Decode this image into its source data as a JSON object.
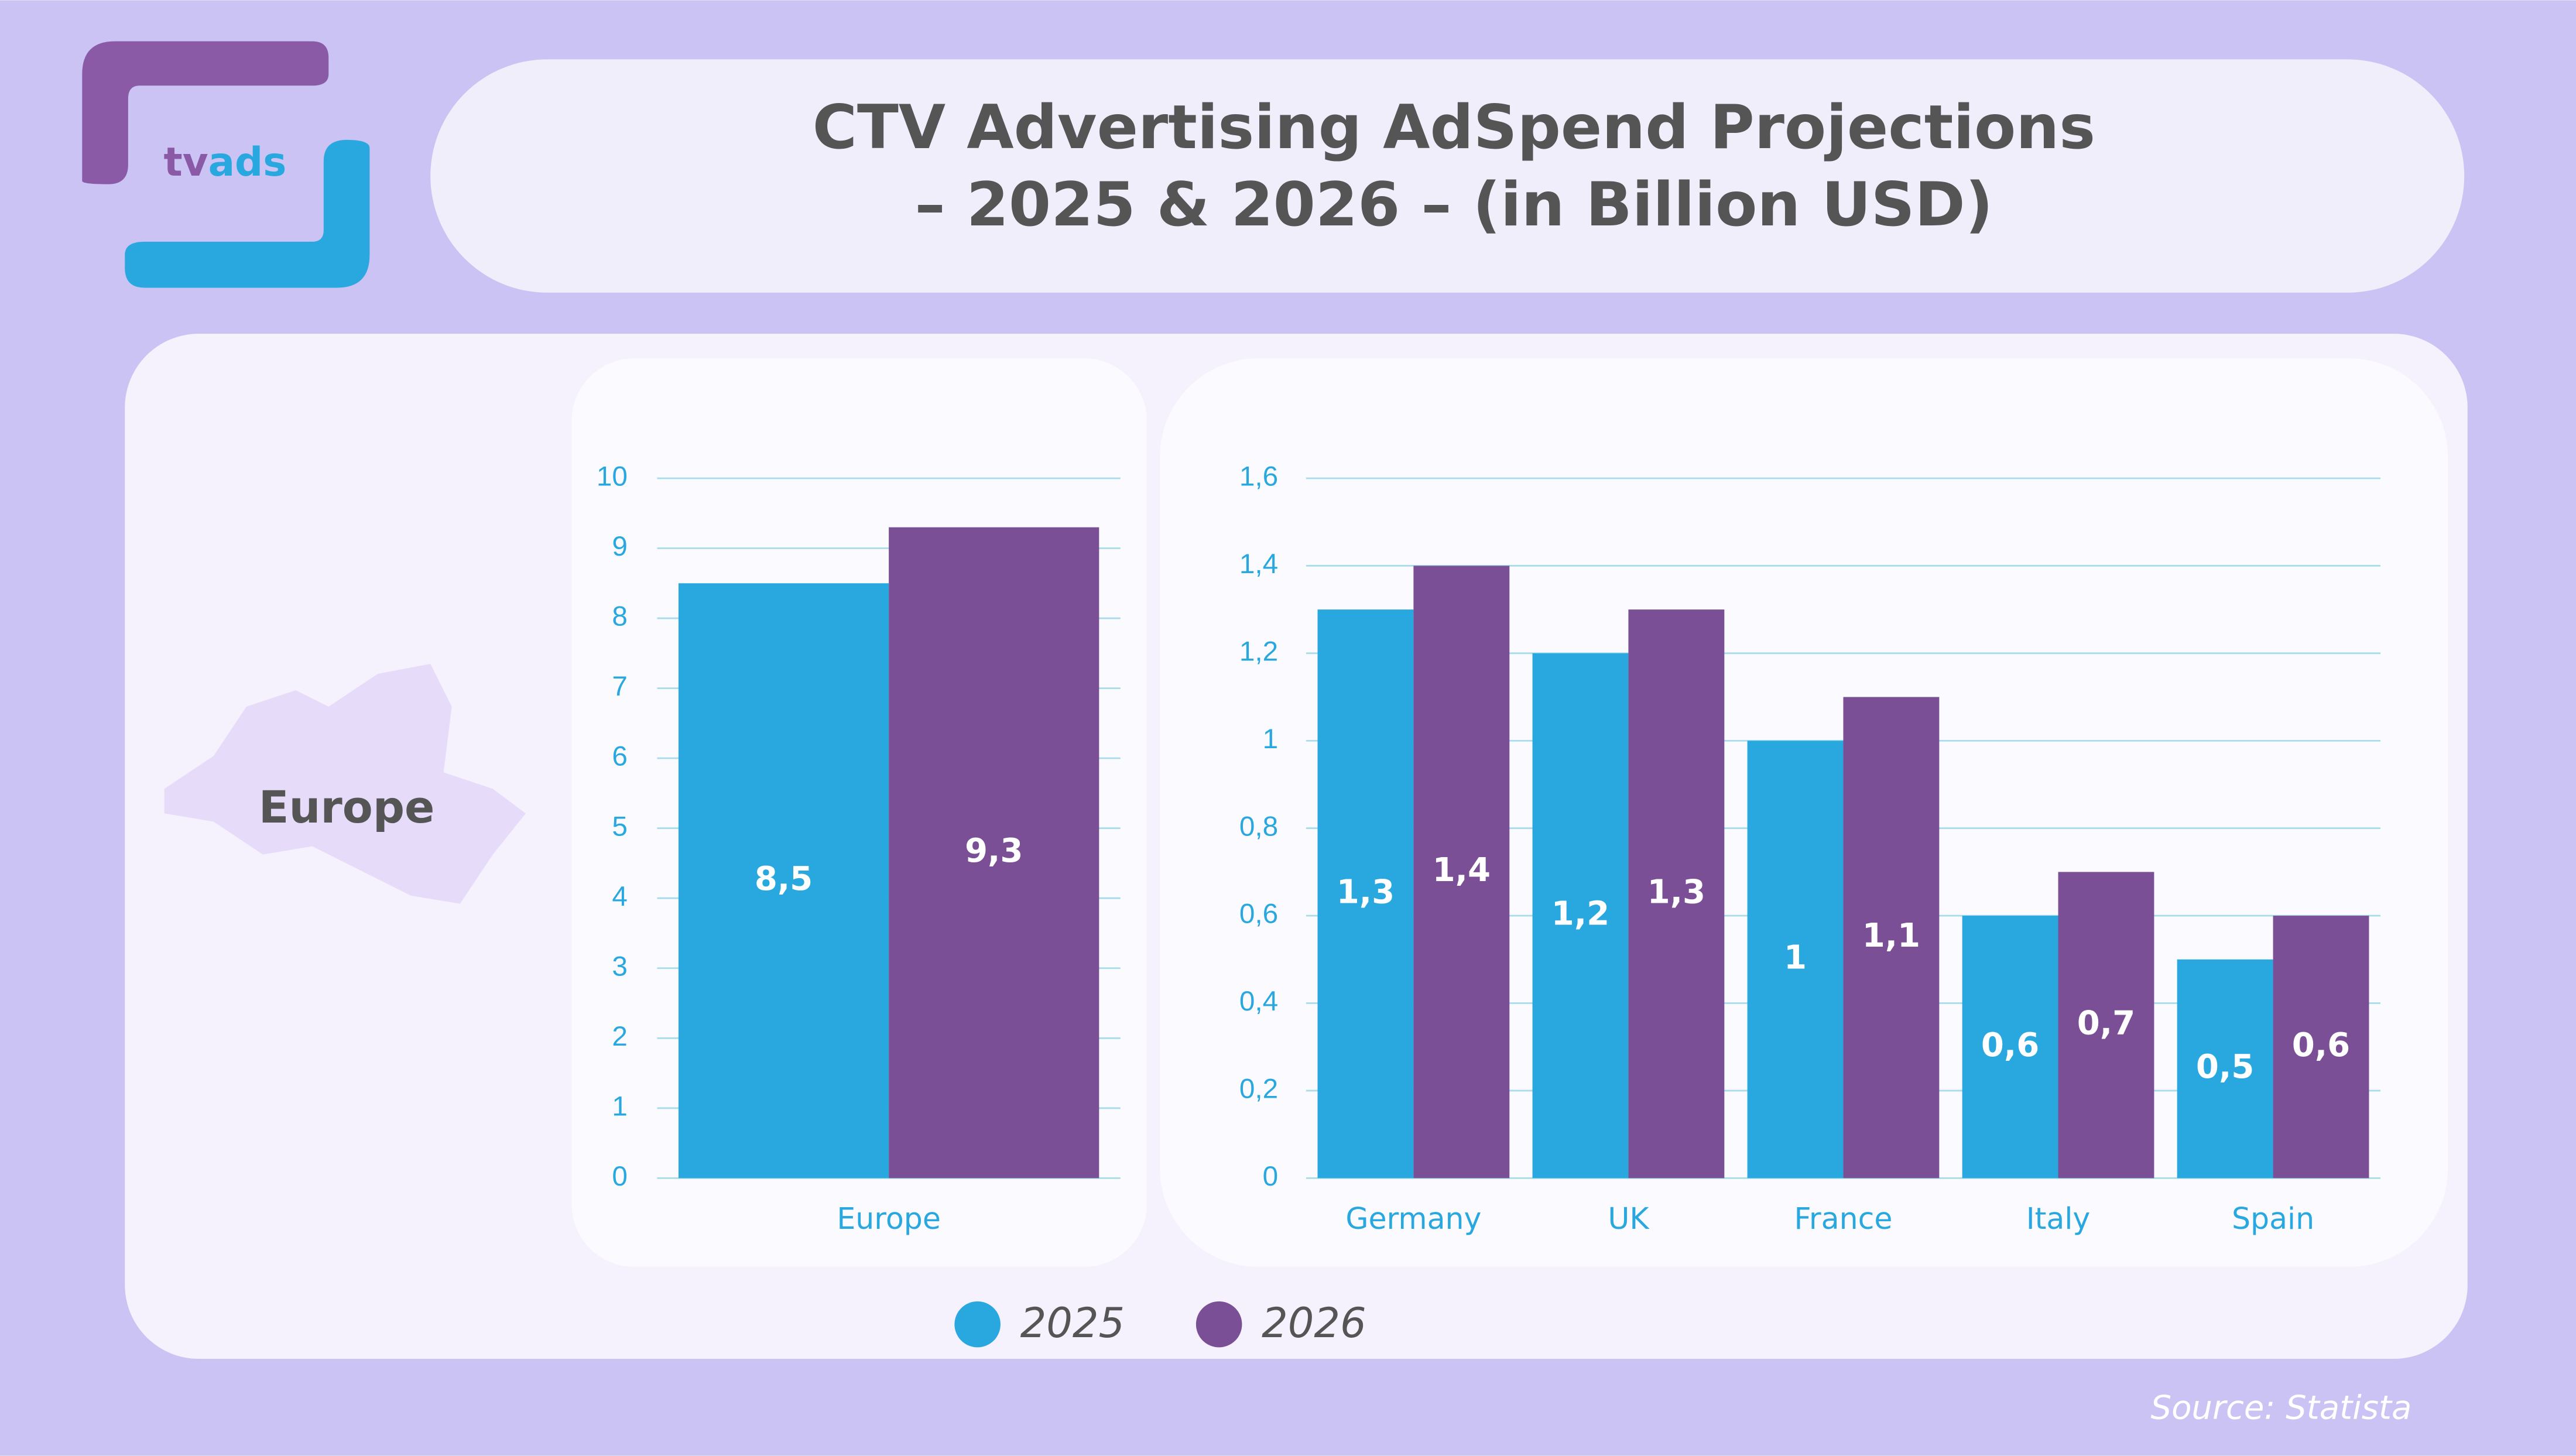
{
  "logo": {
    "first": "tv",
    "second": "ads"
  },
  "title": [
    "CTV Advertising AdSpend Projections",
    "– 2025 & 2026 – (in Billion USD)"
  ],
  "region": "Europe",
  "source": "Source: Statista",
  "chart_data": [
    {
      "type": "bar",
      "categories": [
        "Europe"
      ],
      "series": [
        {
          "color": "#29a8e0",
          "values": [
            8.5
          ],
          "value_labels": [
            "8,5"
          ]
        },
        {
          "color": "#7a4f96",
          "values": [
            9.3
          ],
          "value_labels": [
            "9,3"
          ]
        }
      ],
      "ylim": [
        0,
        10
      ],
      "yticks": [
        0,
        1,
        2,
        3,
        4,
        5,
        6,
        7,
        8,
        9,
        10
      ],
      "grid": true
    },
    {
      "type": "bar",
      "categories": [
        "Germany",
        "UK",
        "France",
        "Italy",
        "Spain"
      ],
      "series": [
        {
          "name": "2025",
          "color": "#29a8e0",
          "values": [
            1.3,
            1.2,
            1,
            0.6,
            0.5
          ],
          "value_labels": [
            "1,3",
            "1,2",
            "1",
            "0,6",
            "0,5"
          ]
        },
        {
          "name": "2026",
          "color": "#7a4f96",
          "values": [
            1.4,
            1.3,
            1.1,
            0.7,
            0.6
          ],
          "value_labels": [
            "1,4",
            "1,3",
            "1,1",
            "0,7",
            "0,6"
          ]
        }
      ],
      "ylim": [
        0,
        1.6
      ],
      "yticks": [
        0,
        {
          "value": 0.2,
          "label": "0,2"
        },
        {
          "value": 0.4,
          "label": "0,4"
        },
        {
          "value": 0.6,
          "label": "0,6"
        },
        {
          "value": 0.8,
          "label": "0,8"
        },
        1,
        {
          "value": 1.2,
          "label": "1,2"
        },
        {
          "value": 1.4,
          "label": "1,4"
        },
        {
          "value": 1.6,
          "label": "1,6"
        }
      ],
      "grid": true
    }
  ]
}
